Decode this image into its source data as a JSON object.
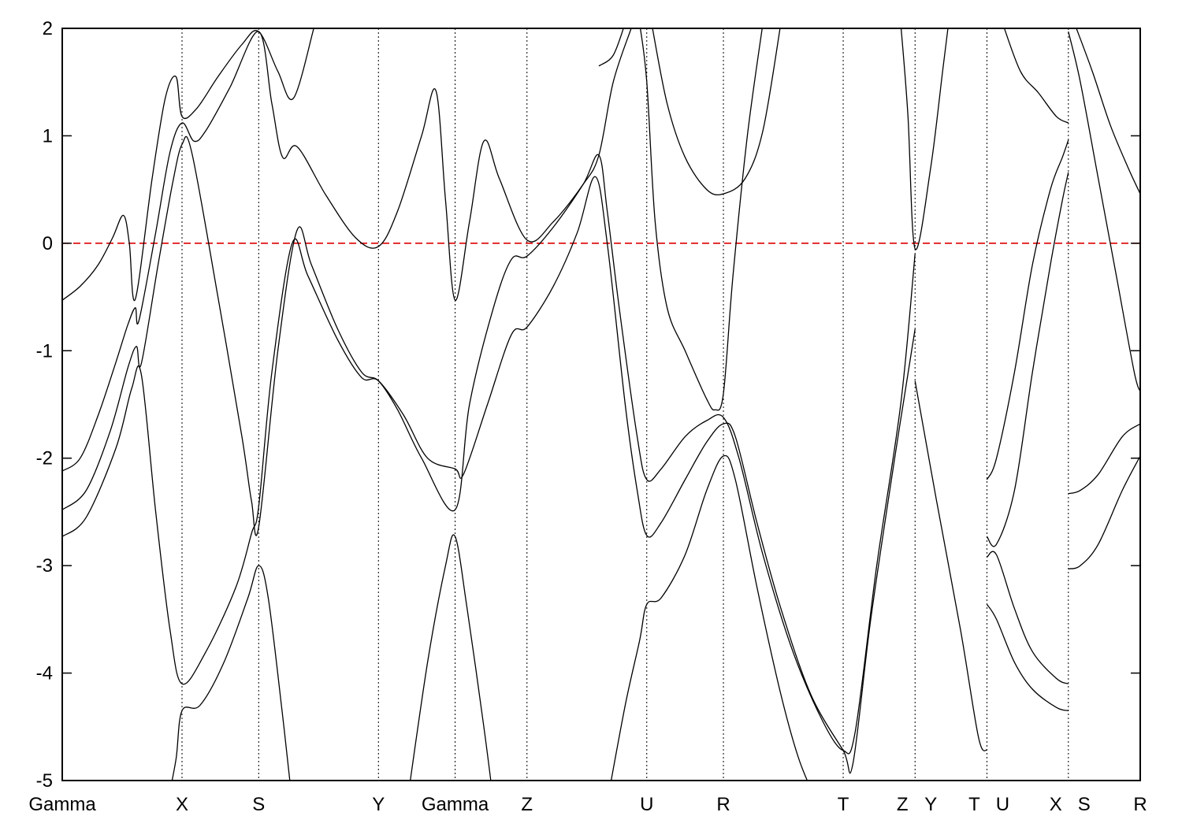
{
  "chart_data": {
    "type": "line",
    "title": "",
    "xlabel": "",
    "ylabel": "",
    "ylim": [
      -5,
      2
    ],
    "yticks": [
      -5,
      -4,
      -3,
      -2,
      -1,
      0,
      1,
      2
    ],
    "xlim": [
      0,
      9.0
    ],
    "grid": false,
    "legend": "none",
    "line_color": "#000000",
    "reference_line": {
      "y": 0,
      "style": "dashed",
      "color": "#dd0000"
    },
    "kpoints": [
      {
        "label": "Gamma",
        "x": 0.0
      },
      {
        "label": "X",
        "x": 1.0
      },
      {
        "label": "S",
        "x": 1.64
      },
      {
        "label": "Y",
        "x": 2.64
      },
      {
        "label": "Gamma",
        "x": 3.28
      },
      {
        "label": "Z",
        "x": 3.88
      },
      {
        "label": "U",
        "x": 4.88
      },
      {
        "label": "R",
        "x": 5.52
      },
      {
        "label": "T",
        "x": 6.52
      },
      {
        "label": "Z",
        "x": 7.12
      },
      {
        "label": "Y",
        "x": 7.12
      },
      {
        "label": "T",
        "x": 7.72
      },
      {
        "label": "U",
        "x": 7.72
      },
      {
        "label": "X",
        "x": 8.4
      },
      {
        "label": "S",
        "x": 8.4
      },
      {
        "label": "R",
        "x": 9.0
      }
    ],
    "vlines_x": [
      1.0,
      1.64,
      2.64,
      3.28,
      3.88,
      4.88,
      5.52,
      6.52,
      7.12,
      7.72,
      8.4
    ],
    "series": [
      {
        "points": [
          [
            0.0,
            -0.53
          ],
          [
            0.15,
            -0.4
          ],
          [
            0.3,
            -0.2
          ],
          [
            0.42,
            0.05
          ],
          [
            0.51,
            0.26
          ],
          [
            0.56,
            0.0
          ],
          [
            0.61,
            -0.52
          ],
          [
            0.75,
            0.6
          ],
          [
            0.86,
            1.35
          ],
          [
            0.95,
            1.55
          ],
          [
            1.0,
            1.18
          ],
          [
            1.12,
            1.25
          ],
          [
            1.3,
            1.55
          ],
          [
            1.5,
            1.85
          ],
          [
            1.64,
            1.97
          ],
          [
            1.8,
            1.6
          ],
          [
            1.93,
            1.35
          ],
          [
            2.1,
            2.0
          ]
        ]
      },
      {
        "points": [
          [
            0.0,
            -2.12
          ],
          [
            0.15,
            -2.0
          ],
          [
            0.3,
            -1.6
          ],
          [
            0.45,
            -1.1
          ],
          [
            0.55,
            -0.75
          ],
          [
            0.61,
            -0.6
          ],
          [
            0.64,
            -0.72
          ],
          [
            0.78,
            0.1
          ],
          [
            0.9,
            0.85
          ],
          [
            1.0,
            1.12
          ],
          [
            1.1,
            0.95
          ],
          [
            1.2,
            1.05
          ],
          [
            1.4,
            1.45
          ],
          [
            1.64,
            1.97
          ],
          [
            1.75,
            1.3
          ],
          [
            1.84,
            0.8
          ],
          [
            1.96,
            0.9
          ],
          [
            2.2,
            0.45
          ],
          [
            2.45,
            0.05
          ],
          [
            2.64,
            -0.03
          ],
          [
            2.8,
            0.3
          ],
          [
            3.0,
            1.0
          ],
          [
            3.12,
            1.42
          ],
          [
            3.2,
            0.4
          ],
          [
            3.28,
            -0.53
          ],
          [
            3.4,
            0.2
          ],
          [
            3.52,
            0.95
          ],
          [
            3.65,
            0.6
          ],
          [
            3.88,
            0.03
          ],
          [
            4.1,
            0.2
          ],
          [
            4.35,
            0.55
          ],
          [
            4.48,
            0.82
          ],
          [
            4.6,
            1.5
          ],
          [
            4.75,
            2.0
          ]
        ]
      },
      {
        "points": [
          [
            0.0,
            -2.48
          ],
          [
            0.2,
            -2.3
          ],
          [
            0.4,
            -1.75
          ],
          [
            0.55,
            -1.15
          ],
          [
            0.62,
            -0.96
          ],
          [
            0.66,
            -1.12
          ],
          [
            0.8,
            -0.2
          ],
          [
            0.92,
            0.55
          ],
          [
            1.0,
            0.92
          ],
          [
            1.08,
            0.85
          ],
          [
            1.3,
            -0.5
          ],
          [
            1.5,
            -1.8
          ],
          [
            1.58,
            -2.4
          ],
          [
            1.64,
            -2.64
          ],
          [
            1.8,
            -1.0
          ],
          [
            1.96,
            0.12
          ],
          [
            2.08,
            -0.2
          ],
          [
            2.3,
            -0.8
          ],
          [
            2.5,
            -1.2
          ],
          [
            2.64,
            -1.28
          ],
          [
            2.8,
            -1.55
          ],
          [
            3.0,
            -2.0
          ],
          [
            3.28,
            -2.48
          ],
          [
            3.4,
            -1.5
          ],
          [
            3.6,
            -0.6
          ],
          [
            3.75,
            -0.15
          ],
          [
            3.88,
            -0.12
          ],
          [
            4.1,
            0.15
          ],
          [
            4.35,
            0.55
          ],
          [
            4.48,
            0.82
          ],
          [
            4.55,
            0.3
          ],
          [
            4.65,
            -0.6
          ],
          [
            4.8,
            -1.8
          ],
          [
            4.88,
            -2.2
          ],
          [
            5.0,
            -2.1
          ],
          [
            5.2,
            -1.8
          ],
          [
            5.38,
            -1.65
          ],
          [
            5.52,
            -1.62
          ],
          [
            5.65,
            -2.0
          ],
          [
            5.85,
            -2.9
          ],
          [
            6.1,
            -3.8
          ],
          [
            6.35,
            -4.45
          ],
          [
            6.52,
            -4.72
          ],
          [
            6.62,
            -4.55
          ],
          [
            6.8,
            -3.0
          ],
          [
            7.0,
            -1.5
          ],
          [
            7.12,
            -0.1
          ]
        ]
      },
      {
        "points": [
          [
            0.0,
            -2.73
          ],
          [
            0.2,
            -2.55
          ],
          [
            0.45,
            -1.9
          ],
          [
            0.58,
            -1.35
          ],
          [
            0.66,
            -1.22
          ],
          [
            0.78,
            -2.5
          ],
          [
            0.9,
            -3.6
          ],
          [
            1.0,
            -4.1
          ],
          [
            1.2,
            -3.8
          ],
          [
            1.45,
            -3.2
          ],
          [
            1.58,
            -2.7
          ],
          [
            1.64,
            -2.45
          ],
          [
            1.75,
            -1.2
          ],
          [
            1.92,
            0.0
          ],
          [
            2.05,
            -0.3
          ],
          [
            2.3,
            -0.9
          ],
          [
            2.5,
            -1.25
          ],
          [
            2.64,
            -1.28
          ],
          [
            2.85,
            -1.6
          ],
          [
            3.05,
            -2.0
          ],
          [
            3.28,
            -2.1
          ],
          [
            3.35,
            -2.15
          ],
          [
            3.55,
            -1.5
          ],
          [
            3.75,
            -0.85
          ],
          [
            3.88,
            -0.78
          ],
          [
            4.1,
            -0.4
          ],
          [
            4.3,
            0.1
          ],
          [
            4.45,
            0.62
          ],
          [
            4.55,
            0.0
          ],
          [
            4.7,
            -1.5
          ],
          [
            4.8,
            -2.3
          ],
          [
            4.88,
            -2.72
          ],
          [
            5.0,
            -2.6
          ],
          [
            5.2,
            -2.2
          ],
          [
            5.38,
            -1.85
          ],
          [
            5.52,
            -1.68
          ],
          [
            5.62,
            -1.8
          ],
          [
            5.8,
            -2.6
          ],
          [
            6.0,
            -3.4
          ],
          [
            6.25,
            -4.2
          ],
          [
            6.52,
            -4.72
          ],
          [
            6.6,
            -4.85
          ],
          [
            6.75,
            -3.5
          ],
          [
            6.95,
            -2.0
          ],
          [
            7.12,
            -0.8
          ]
        ]
      },
      {
        "points": [
          [
            0.88,
            -5.2
          ],
          [
            0.95,
            -4.8
          ],
          [
            1.0,
            -4.35
          ],
          [
            1.15,
            -4.3
          ],
          [
            1.35,
            -3.9
          ],
          [
            1.55,
            -3.3
          ],
          [
            1.64,
            -3.0
          ],
          [
            1.72,
            -3.3
          ],
          [
            1.84,
            -4.4
          ],
          [
            1.92,
            -5.2
          ]
        ]
      },
      {
        "points": [
          [
            2.88,
            -5.2
          ],
          [
            3.05,
            -3.9
          ],
          [
            3.2,
            -3.0
          ],
          [
            3.28,
            -2.73
          ],
          [
            3.38,
            -3.4
          ],
          [
            3.52,
            -4.5
          ],
          [
            3.6,
            -5.2
          ]
        ]
      },
      {
        "points": [
          [
            4.55,
            -5.2
          ],
          [
            4.7,
            -4.3
          ],
          [
            4.82,
            -3.7
          ],
          [
            4.88,
            -3.36
          ],
          [
            5.0,
            -3.3
          ],
          [
            5.2,
            -2.9
          ],
          [
            5.38,
            -2.3
          ],
          [
            5.52,
            -1.98
          ],
          [
            5.62,
            -2.2
          ],
          [
            5.8,
            -3.2
          ],
          [
            6.0,
            -4.2
          ],
          [
            6.15,
            -4.8
          ],
          [
            6.3,
            -5.2
          ]
        ]
      },
      {
        "points": [
          [
            4.48,
            1.65
          ],
          [
            4.6,
            1.75
          ],
          [
            4.7,
            2.05
          ]
        ]
      },
      {
        "points": [
          [
            4.82,
            2.05
          ],
          [
            4.88,
            1.5
          ],
          [
            4.95,
            0.2
          ],
          [
            5.05,
            -0.6
          ],
          [
            5.2,
            -1.0
          ],
          [
            5.38,
            -1.45
          ],
          [
            5.45,
            -1.55
          ],
          [
            5.52,
            -1.4
          ],
          [
            5.6,
            -0.3
          ],
          [
            5.72,
            1.0
          ],
          [
            5.85,
            2.05
          ]
        ]
      },
      {
        "points": [
          [
            4.92,
            2.05
          ],
          [
            5.05,
            1.3
          ],
          [
            5.2,
            0.8
          ],
          [
            5.38,
            0.5
          ],
          [
            5.52,
            0.46
          ],
          [
            5.7,
            0.6
          ],
          [
            5.85,
            1.05
          ],
          [
            6.0,
            2.05
          ]
        ]
      },
      {
        "points": [
          [
            7.0,
            2.05
          ],
          [
            7.06,
            1.2
          ],
          [
            7.12,
            -0.05
          ],
          [
            7.25,
            0.7
          ],
          [
            7.35,
            1.6
          ],
          [
            7.4,
            2.05
          ]
        ]
      },
      {
        "points": [
          [
            7.12,
            -1.28
          ],
          [
            7.3,
            -2.4
          ],
          [
            7.5,
            -3.6
          ],
          [
            7.65,
            -4.6
          ],
          [
            7.72,
            -4.72
          ]
        ]
      },
      {
        "points": [
          [
            7.72,
            -2.2
          ],
          [
            7.8,
            -2.0
          ],
          [
            7.95,
            -1.2
          ],
          [
            8.1,
            -0.2
          ],
          [
            8.25,
            0.5
          ],
          [
            8.35,
            0.8
          ],
          [
            8.4,
            0.96
          ]
        ]
      },
      {
        "points": [
          [
            7.72,
            -2.73
          ],
          [
            7.8,
            -2.8
          ],
          [
            7.95,
            -2.3
          ],
          [
            8.1,
            -1.2
          ],
          [
            8.25,
            -0.2
          ],
          [
            8.35,
            0.4
          ],
          [
            8.4,
            0.66
          ]
        ]
      },
      {
        "points": [
          [
            7.72,
            -2.92
          ],
          [
            7.8,
            -2.9
          ],
          [
            7.95,
            -3.4
          ],
          [
            8.1,
            -3.8
          ],
          [
            8.3,
            -4.05
          ],
          [
            8.4,
            -4.1
          ]
        ]
      },
      {
        "points": [
          [
            7.72,
            -3.36
          ],
          [
            7.8,
            -3.5
          ],
          [
            7.95,
            -3.9
          ],
          [
            8.1,
            -4.15
          ],
          [
            8.3,
            -4.32
          ],
          [
            8.4,
            -4.35
          ]
        ]
      },
      {
        "points": [
          [
            7.85,
            2.05
          ],
          [
            8.0,
            1.6
          ],
          [
            8.15,
            1.4
          ],
          [
            8.3,
            1.18
          ],
          [
            8.4,
            1.12
          ]
        ]
      },
      {
        "points": [
          [
            8.4,
            1.97
          ],
          [
            8.5,
            1.5
          ],
          [
            8.65,
            0.6
          ],
          [
            8.8,
            -0.3
          ],
          [
            8.95,
            -1.2
          ],
          [
            9.0,
            -1.38
          ]
        ]
      },
      {
        "points": [
          [
            8.45,
            2.05
          ],
          [
            8.6,
            1.6
          ],
          [
            8.75,
            1.1
          ],
          [
            8.9,
            0.7
          ],
          [
            9.0,
            0.46
          ]
        ]
      },
      {
        "points": [
          [
            8.4,
            -2.33
          ],
          [
            8.5,
            -2.3
          ],
          [
            8.65,
            -2.15
          ],
          [
            8.85,
            -1.8
          ],
          [
            9.0,
            -1.68
          ]
        ]
      },
      {
        "points": [
          [
            8.4,
            -3.03
          ],
          [
            8.5,
            -3.0
          ],
          [
            8.65,
            -2.8
          ],
          [
            8.85,
            -2.3
          ],
          [
            9.0,
            -1.98
          ]
        ]
      }
    ]
  }
}
